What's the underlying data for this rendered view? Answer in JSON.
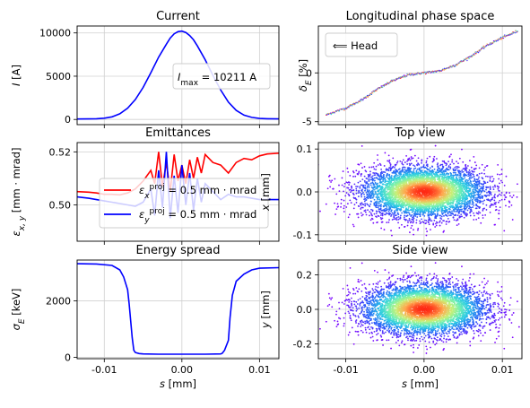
{
  "chart_data": [
    {
      "type": "line",
      "title": "Current",
      "ylabel": "I [A]",
      "xlim": [
        -0.0135,
        0.0125
      ],
      "ylim": [
        -600,
        10800
      ],
      "yticks": [
        0,
        5000,
        10000
      ],
      "ytick_labels": [
        "0",
        "5000",
        "10000"
      ],
      "grid": true,
      "annotation": "I_max = 10211 A",
      "series": [
        {
          "color": "#0000ff",
          "x": [
            -0.0135,
            -0.012,
            -0.011,
            -0.01,
            -0.009,
            -0.008,
            -0.007,
            -0.006,
            -0.005,
            -0.004,
            -0.003,
            -0.002,
            -0.0015,
            -0.001,
            -0.0005,
            0.0,
            0.0005,
            0.001,
            0.0015,
            0.002,
            0.003,
            0.004,
            0.005,
            0.006,
            0.007,
            0.008,
            0.009,
            0.01,
            0.011,
            0.0125
          ],
          "y": [
            50,
            60,
            80,
            150,
            300,
            650,
            1300,
            2300,
            3700,
            5400,
            7200,
            8700,
            9400,
            9900,
            10150,
            10211,
            10050,
            9700,
            9200,
            8500,
            6900,
            5100,
            3400,
            2000,
            1050,
            500,
            240,
            120,
            80,
            60
          ]
        }
      ]
    },
    {
      "type": "scatter",
      "title": "Longitudinal phase space",
      "ylabel": "δ_E [%]",
      "xlim": [
        -0.0135,
        0.0125
      ],
      "ylim": [
        -5.3,
        4.8
      ],
      "yticks": [
        -5,
        0
      ],
      "ytick_labels": [
        "-5",
        "0"
      ],
      "grid": true,
      "legend": "⟸ Head",
      "legend_position": "top-left",
      "colormap": "rainbow",
      "trace": {
        "x": [
          -0.0125,
          -0.01,
          -0.008,
          -0.006,
          -0.004,
          -0.002,
          0.0,
          0.002,
          0.004,
          0.006,
          0.008,
          0.01,
          0.012
        ],
        "y": [
          -4.3,
          -3.6,
          -2.8,
          -1.7,
          -0.8,
          -0.2,
          0.0,
          0.2,
          0.8,
          1.7,
          2.8,
          3.6,
          4.3
        ]
      }
    },
    {
      "type": "line",
      "title": "Emittances",
      "ylabel": "ε_x,y [mm · mrad]",
      "xlim": [
        -0.0135,
        0.0125
      ],
      "ylim": [
        0.4863,
        0.5235
      ],
      "yticks": [
        0.5,
        0.52
      ],
      "ytick_labels": [
        "0.50",
        "0.52"
      ],
      "grid": true,
      "legend_position": "center",
      "series": [
        {
          "name": "ε_x^proj = 0.5 mm · mrad",
          "color": "#ff0000",
          "x": [
            -0.0135,
            -0.012,
            -0.011,
            -0.01,
            -0.009,
            -0.008,
            -0.007,
            -0.006,
            -0.005,
            -0.004,
            -0.0035,
            -0.003,
            -0.0025,
            -0.002,
            -0.0015,
            -0.001,
            -0.0005,
            0.0,
            0.0005,
            0.001,
            0.0015,
            0.002,
            0.0025,
            0.003,
            0.004,
            0.005,
            0.006,
            0.007,
            0.008,
            0.009,
            0.01,
            0.011,
            0.0125
          ],
          "y": [
            0.505,
            0.5048,
            0.5045,
            0.504,
            0.504,
            0.5038,
            0.5045,
            0.506,
            0.509,
            0.513,
            0.508,
            0.52,
            0.507,
            0.516,
            0.505,
            0.519,
            0.509,
            0.515,
            0.508,
            0.517,
            0.51,
            0.518,
            0.512,
            0.519,
            0.516,
            0.515,
            0.512,
            0.516,
            0.5175,
            0.517,
            0.5185,
            0.5192,
            0.5195
          ]
        },
        {
          "name": "ε_y^proj = 0.5 mm · mrad",
          "color": "#0000ff",
          "x": [
            -0.0135,
            -0.012,
            -0.011,
            -0.01,
            -0.009,
            -0.008,
            -0.007,
            -0.006,
            -0.005,
            -0.004,
            -0.0035,
            -0.003,
            -0.0025,
            -0.002,
            -0.0015,
            -0.001,
            -0.0005,
            0.0,
            0.0005,
            0.001,
            0.0015,
            0.002,
            0.0025,
            0.003,
            0.004,
            0.005,
            0.006,
            0.007,
            0.008,
            0.009,
            0.01,
            0.011,
            0.0125
          ],
          "y": [
            0.503,
            0.5025,
            0.502,
            0.5015,
            0.501,
            0.5005,
            0.5,
            0.4995,
            0.501,
            0.506,
            0.496,
            0.513,
            0.499,
            0.52,
            0.495,
            0.511,
            0.497,
            0.515,
            0.5,
            0.512,
            0.498,
            0.51,
            0.501,
            0.508,
            0.505,
            0.502,
            0.504,
            0.503,
            0.503,
            0.5025,
            0.502,
            0.502,
            0.502
          ]
        }
      ]
    },
    {
      "type": "scatter",
      "title": "Top view",
      "ylabel": "x [mm]",
      "xlim": [
        -0.0135,
        0.0125
      ],
      "ylim": [
        -0.115,
        0.115
      ],
      "yticks": [
        -0.1,
        0.0,
        0.1
      ],
      "ytick_labels": [
        "-0.1",
        "0.0",
        "0.1"
      ],
      "grid": true,
      "colormap": "rainbow",
      "distribution": {
        "x_center": 0.0,
        "x_sigma": 0.004,
        "y_center": 0.0,
        "y_sigma": 0.03
      }
    },
    {
      "type": "line",
      "title": "Energy spread",
      "ylabel": "σ_E [keV]",
      "xlabel": "s [mm]",
      "xlim": [
        -0.0135,
        0.0125
      ],
      "ylim": [
        -50,
        3450
      ],
      "yticks": [
        0,
        2000
      ],
      "ytick_labels": [
        "0",
        "2000"
      ],
      "xticks": [
        -0.01,
        0.0,
        0.01
      ],
      "xtick_labels": [
        "-0.01",
        "0.00",
        "0.01"
      ],
      "grid": true,
      "series": [
        {
          "color": "#0000ff",
          "x": [
            -0.0135,
            -0.011,
            -0.009,
            -0.008,
            -0.0075,
            -0.007,
            -0.0068,
            -0.0066,
            -0.0064,
            -0.0062,
            -0.006,
            -0.0055,
            -0.005,
            -0.003,
            0.0,
            0.003,
            0.005,
            0.0052,
            0.0055,
            0.006,
            0.0062,
            0.0065,
            0.0068,
            0.007,
            0.008,
            0.009,
            0.01,
            0.0125
          ],
          "y": [
            3320,
            3310,
            3260,
            3100,
            2850,
            2400,
            1900,
            1300,
            700,
            250,
            170,
            130,
            120,
            110,
            110,
            110,
            120,
            140,
            250,
            600,
            1400,
            2200,
            2500,
            2700,
            2950,
            3100,
            3160,
            3180
          ]
        }
      ]
    },
    {
      "type": "scatter",
      "title": "Side view",
      "ylabel": "y [mm]",
      "xlabel": "s [mm]",
      "xlim": [
        -0.0135,
        0.0125
      ],
      "ylim": [
        -0.285,
        0.285
      ],
      "yticks": [
        -0.2,
        0.0,
        0.2
      ],
      "ytick_labels": [
        "-0.2",
        "0.0",
        "0.2"
      ],
      "xticks": [
        -0.01,
        0.0,
        0.01
      ],
      "xtick_labels": [
        "-0.01",
        "0.00",
        "0.01"
      ],
      "grid": true,
      "colormap": "rainbow",
      "distribution": {
        "x_center": 0.0,
        "x_sigma": 0.004,
        "y_center": 0.0,
        "y_sigma": 0.075
      }
    }
  ]
}
